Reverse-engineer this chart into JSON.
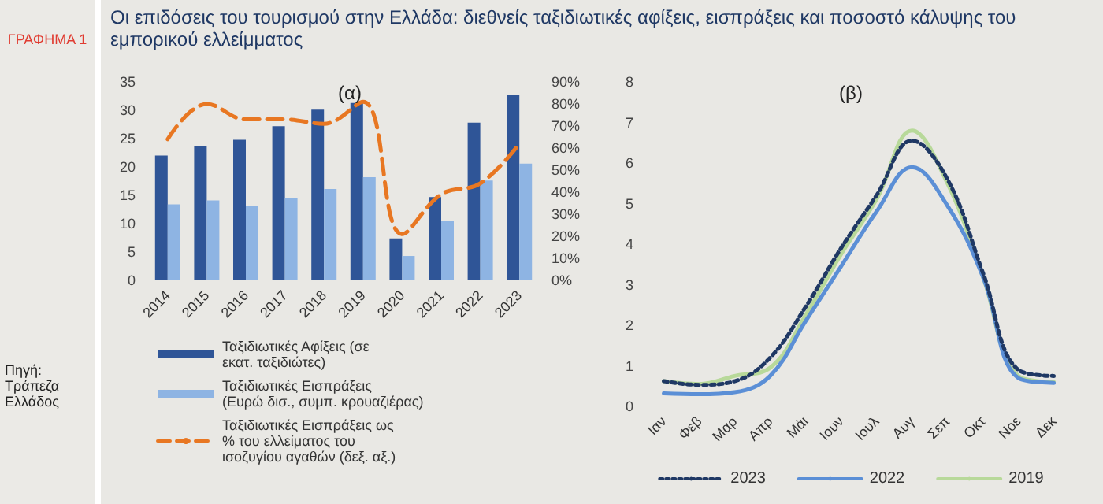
{
  "chart_data": [
    {
      "type": "bar",
      "title": "Οι επιδόσεις του τουρισμού στην Ελλάδα: διεθνείς ταξιδιωτικές αφίξεις, εισπράξεις και ποσοστό κάλυψης του εμπορικού ελλείμματος",
      "subtitle": "(α)",
      "annotations": [
        "ΓΡΑΦΗΜΑ 1",
        "Πηγή: Τράπεζα Ελλάδος"
      ],
      "categories": [
        "2014",
        "2015",
        "2016",
        "2017",
        "2018",
        "2019",
        "2020",
        "2021",
        "2022",
        "2023"
      ],
      "series": [
        {
          "name": "Ταξιδιωτικές Αφίξεις (σε εκατ. ταξιδιώτες)",
          "color": "#2f5597",
          "values": [
            22,
            23.6,
            24.8,
            27.2,
            30.1,
            31.3,
            7.4,
            14.7,
            27.8,
            32.7
          ]
        },
        {
          "name": "Ταξιδιωτικές Εισπράξεις (Ευρώ δισ., συμπ. κρουαζιέρας)",
          "color": "#8eb4e3",
          "values": [
            13.4,
            14.1,
            13.2,
            14.6,
            16.1,
            18.2,
            4.3,
            10.5,
            17.6,
            20.6
          ]
        },
        {
          "name": "Ταξιδιωτικές Εισπράξεις ως % του ελλείματος του ισοζυγίου αγαθών (δεξ. αξ.)",
          "type": "line",
          "axis": "y2",
          "line_style": "dashed",
          "color": "#e87722",
          "values": [
            64,
            80,
            73,
            73,
            71,
            81,
            21,
            39,
            44,
            62
          ]
        }
      ],
      "ylim": [
        0,
        35
      ],
      "yticks": [
        0,
        5,
        10,
        15,
        20,
        25,
        30,
        35
      ],
      "y2lim": [
        0,
        90
      ],
      "y2ticks": [
        {
          "value": 0,
          "label": "0%"
        },
        {
          "value": 10,
          "label": "10%"
        },
        {
          "value": 20,
          "label": "20%"
        },
        {
          "value": 30,
          "label": "30%"
        },
        {
          "value": 40,
          "label": "40%"
        },
        {
          "value": 50,
          "label": "50%"
        },
        {
          "value": 60,
          "label": "60%"
        },
        {
          "value": 70,
          "label": "70%"
        },
        {
          "value": 80,
          "label": "80%"
        },
        {
          "value": 90,
          "label": "90%"
        }
      ],
      "grid": false,
      "legend": "bottom",
      "marker": "none"
    },
    {
      "type": "line",
      "title": "(β)",
      "categories": [
        "Ιαν",
        "Φεβ",
        "Μαρ",
        "Απρ",
        "Μάι",
        "Ιουν",
        "Ιουλ",
        "Αυγ",
        "Σεπ",
        "Οκτ",
        "Νοε",
        "Δεκ"
      ],
      "series": [
        {
          "name": "2023",
          "color": "#1f3864",
          "line_style": "dotted",
          "values": [
            0.62,
            0.53,
            0.62,
            1.2,
            2.45,
            3.9,
            5.2,
            6.55,
            5.6,
            3.3,
            0.9,
            0.75
          ]
        },
        {
          "name": "2022",
          "color": "#5b8fd6",
          "line_style": "solid",
          "values": [
            0.32,
            0.3,
            0.35,
            0.75,
            2.1,
            3.45,
            4.8,
            5.9,
            4.95,
            3.2,
            0.7,
            0.58
          ]
        },
        {
          "name": "2019",
          "color": "#b8d99a",
          "line_style": "solid",
          "values": [
            0.62,
            0.55,
            0.75,
            0.95,
            2.25,
            3.75,
            5.1,
            6.8,
            5.5,
            3.2,
            0.75,
            0.6
          ]
        }
      ],
      "ylim": [
        0,
        8
      ],
      "yticks": [
        0,
        1,
        2,
        3,
        4,
        5,
        6,
        7,
        8
      ],
      "grid": false,
      "legend": "bottom",
      "marker": "none"
    }
  ]
}
